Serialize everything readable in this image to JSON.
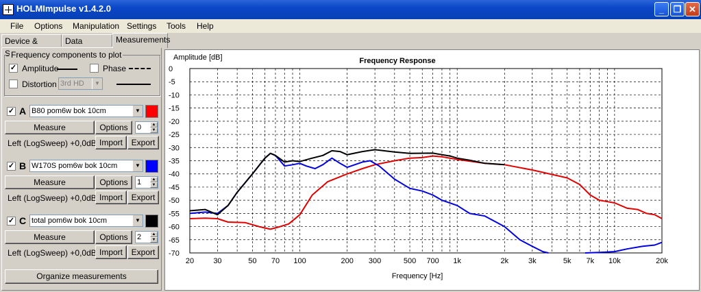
{
  "window": {
    "title": "HOLMImpulse  v1.4.2.0",
    "min": "_",
    "max": "❐",
    "close": "✕"
  },
  "menu": [
    "File",
    "Options",
    "Manipulation",
    "Settings",
    "Tools",
    "Help"
  ],
  "tabs": [
    "Device & Signal",
    "Data analysis",
    "Measurements"
  ],
  "freq_components": {
    "group_label": "Frequency components to plot",
    "amplitude": {
      "label": "Amplitude",
      "checked": true
    },
    "phase": {
      "label": "Phase",
      "checked": false
    },
    "distortion": {
      "label": "Distortion",
      "checked": false,
      "select_value": "3rd HD"
    }
  },
  "measurements": [
    {
      "letter": "A",
      "checked": true,
      "name": "B80 pom6w bok 10cm",
      "color": "#ff0000",
      "measure": "Measure",
      "options": "Options",
      "spin": "0",
      "status": "Left (LogSweep) +0,0dB",
      "import": "Import",
      "export": "Export"
    },
    {
      "letter": "B",
      "checked": true,
      "name": "W170S pom6w bok 10cm",
      "color": "#0000ff",
      "measure": "Measure",
      "options": "Options",
      "spin": "1",
      "status": "Left (LogSweep) +0,0dB",
      "import": "Import",
      "export": "Export"
    },
    {
      "letter": "C",
      "checked": true,
      "name": "total pom6w bok 10cm",
      "color": "#000000",
      "measure": "Measure",
      "options": "Options",
      "spin": "2",
      "status": "Left (LogSweep) +0,0dB",
      "import": "Import",
      "export": "Export"
    }
  ],
  "organize_button": "Organize measurements",
  "chart_data": {
    "type": "line",
    "title": "Frequency Response",
    "xlabel": "Frequency [Hz]",
    "ylabel": "Amplitude [dB]",
    "xscale": "log",
    "xlim": [
      20,
      20000
    ],
    "ylim": [
      -70,
      0
    ],
    "grid": true,
    "x_tick_labels": [
      {
        "value": 20,
        "label": "20"
      },
      {
        "value": 30,
        "label": "30"
      },
      {
        "value": 50,
        "label": "50"
      },
      {
        "value": 70,
        "label": "70"
      },
      {
        "value": 100,
        "label": "100"
      },
      {
        "value": 200,
        "label": "200"
      },
      {
        "value": 300,
        "label": "300"
      },
      {
        "value": 500,
        "label": "500"
      },
      {
        "value": 700,
        "label": "700"
      },
      {
        "value": 1000,
        "label": "1k"
      },
      {
        "value": 2000,
        "label": "2k"
      },
      {
        "value": 3000,
        "label": "3k"
      },
      {
        "value": 5000,
        "label": "5k"
      },
      {
        "value": 7000,
        "label": "7k"
      },
      {
        "value": 10000,
        "label": "10k"
      },
      {
        "value": 20000,
        "label": "20k"
      }
    ],
    "y_ticks": [
      0,
      -5,
      -10,
      -15,
      -20,
      -25,
      -30,
      -35,
      -40,
      -45,
      -50,
      -55,
      -60,
      -65,
      -70
    ],
    "series": [
      {
        "color": "#e00000",
        "points": [
          [
            20,
            -57
          ],
          [
            25,
            -56.8
          ],
          [
            30,
            -57
          ],
          [
            35,
            -58.3
          ],
          [
            45,
            -58.5
          ],
          [
            55,
            -60
          ],
          [
            65,
            -61
          ],
          [
            75,
            -60
          ],
          [
            85,
            -59
          ],
          [
            100,
            -55.5
          ],
          [
            120,
            -48
          ],
          [
            150,
            -43
          ],
          [
            200,
            -40
          ],
          [
            250,
            -38
          ],
          [
            300,
            -36.5
          ],
          [
            400,
            -35
          ],
          [
            500,
            -34
          ],
          [
            600,
            -33.8
          ],
          [
            700,
            -33.2
          ],
          [
            800,
            -33.5
          ],
          [
            1000,
            -34.5
          ],
          [
            1500,
            -36
          ],
          [
            2000,
            -36.5
          ],
          [
            3000,
            -38.5
          ],
          [
            4000,
            -40.2
          ],
          [
            5000,
            -41.5
          ],
          [
            6000,
            -44
          ],
          [
            7000,
            -48
          ],
          [
            8000,
            -50
          ],
          [
            10000,
            -51
          ],
          [
            12000,
            -53
          ],
          [
            14000,
            -53.5
          ],
          [
            16000,
            -55
          ],
          [
            18000,
            -55.5
          ],
          [
            20000,
            -57
          ]
        ]
      },
      {
        "color": "#0000e0",
        "points": [
          [
            20,
            -55
          ],
          [
            25,
            -54.5
          ],
          [
            30,
            -55
          ],
          [
            35,
            -52
          ],
          [
            40,
            -47
          ],
          [
            50,
            -40
          ],
          [
            60,
            -34
          ],
          [
            65,
            -32.2
          ],
          [
            70,
            -33
          ],
          [
            80,
            -37
          ],
          [
            90,
            -36.5
          ],
          [
            100,
            -36
          ],
          [
            110,
            -37
          ],
          [
            125,
            -38
          ],
          [
            140,
            -36.5
          ],
          [
            160,
            -34
          ],
          [
            180,
            -36
          ],
          [
            200,
            -37.5
          ],
          [
            250,
            -35.5
          ],
          [
            280,
            -35
          ],
          [
            320,
            -37
          ],
          [
            400,
            -42
          ],
          [
            500,
            -45.5
          ],
          [
            600,
            -46.5
          ],
          [
            700,
            -48
          ],
          [
            800,
            -50
          ],
          [
            1000,
            -52
          ],
          [
            1200,
            -55
          ],
          [
            1500,
            -56
          ],
          [
            2000,
            -60
          ],
          [
            2500,
            -65
          ],
          [
            3000,
            -67.5
          ],
          [
            3500,
            -69.5
          ],
          [
            3800,
            -70
          ]
        ]
      },
      {
        "color": "#0000e0",
        "points": [
          [
            6500,
            -70
          ],
          [
            8000,
            -69.8
          ],
          [
            10000,
            -69.5
          ],
          [
            12000,
            -68.5
          ],
          [
            15000,
            -67.5
          ],
          [
            18000,
            -67
          ],
          [
            20000,
            -66
          ]
        ]
      },
      {
        "color": "#000000",
        "points": [
          [
            20,
            -54
          ],
          [
            25,
            -53.5
          ],
          [
            30,
            -55.5
          ],
          [
            35,
            -52
          ],
          [
            40,
            -47
          ],
          [
            50,
            -40
          ],
          [
            60,
            -34
          ],
          [
            65,
            -32.2
          ],
          [
            70,
            -33
          ],
          [
            80,
            -35.5
          ],
          [
            90,
            -35
          ],
          [
            100,
            -35.3
          ],
          [
            120,
            -34
          ],
          [
            140,
            -33
          ],
          [
            160,
            -31.2
          ],
          [
            180,
            -31.5
          ],
          [
            200,
            -32.7
          ],
          [
            250,
            -31.5
          ],
          [
            300,
            -30.8
          ],
          [
            400,
            -31.7
          ],
          [
            500,
            -32.2
          ],
          [
            700,
            -32.1
          ],
          [
            900,
            -33.2
          ],
          [
            1000,
            -34
          ],
          [
            1200,
            -34.8
          ],
          [
            1500,
            -36
          ],
          [
            2000,
            -36.5
          ]
        ]
      }
    ]
  }
}
